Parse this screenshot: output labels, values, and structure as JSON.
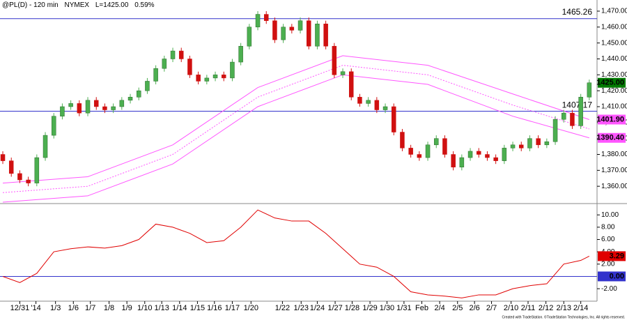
{
  "header": {
    "title": "@PL(D) - 120 min",
    "exchange": "NYMEX",
    "last": "L=1425.00",
    "change": "0.59%"
  },
  "footer": "Created with TradeStation. ©TradeStation Technologies, Inc. All rights reserved.",
  "chart_data": [
    {
      "type": "candlestick",
      "up_color": "#4caf50",
      "down_color": "#d01010",
      "xlim": [
        -0.33,
        69.34
      ],
      "ylim": [
        1350,
        1477
      ],
      "yticks": [
        {
          "value": 1360,
          "label": "1,360.00"
        },
        {
          "value": 1370,
          "label": "1,370.00"
        },
        {
          "value": 1380,
          "label": "1,380.00"
        },
        {
          "value": 1390,
          "label": "1,390.00"
        },
        {
          "value": 1400,
          "label": "1,400.00"
        },
        {
          "value": 1410,
          "label": "1,410.00"
        },
        {
          "value": 1420,
          "label": "1,420.00"
        },
        {
          "value": 1430,
          "label": "1,430.00"
        },
        {
          "value": 1440,
          "label": "1,440.00"
        },
        {
          "value": 1450,
          "label": "1,450.00"
        },
        {
          "value": 1460,
          "label": "1,460.00"
        },
        {
          "value": 1470,
          "label": "1,470.00"
        }
      ],
      "open": [
        1380,
        1376,
        1368,
        1364,
        1362,
        1378,
        1392,
        1404,
        1410,
        1412,
        1406,
        1414,
        1410,
        1408,
        1410,
        1414,
        1416,
        1420,
        1426,
        1434,
        1440,
        1445,
        1440,
        1430,
        1426,
        1428,
        1430,
        1428,
        1438,
        1448,
        1460,
        1468,
        1464,
        1452,
        1460,
        1458,
        1464,
        1448,
        1462,
        1448,
        1430,
        1432,
        1416,
        1412,
        1414,
        1408,
        1410,
        1394,
        1384,
        1380,
        1378,
        1386,
        1390,
        1380,
        1372,
        1378,
        1382,
        1380,
        1378,
        1376,
        1384,
        1386,
        1384,
        1390,
        1386,
        1388,
        1402,
        1406,
        1398,
        1416
      ],
      "high": [
        1382,
        1378,
        1370,
        1366,
        1380,
        1394,
        1406,
        1412,
        1414,
        1414,
        1416,
        1416,
        1412,
        1412,
        1416,
        1418,
        1422,
        1428,
        1436,
        1442,
        1447,
        1447,
        1442,
        1432,
        1430,
        1432,
        1432,
        1440,
        1450,
        1462,
        1470,
        1470,
        1466,
        1462,
        1462,
        1466,
        1466,
        1464,
        1464,
        1450,
        1434,
        1434,
        1418,
        1416,
        1416,
        1412,
        1412,
        1396,
        1386,
        1382,
        1388,
        1392,
        1392,
        1382,
        1380,
        1384,
        1384,
        1382,
        1380,
        1386,
        1388,
        1388,
        1392,
        1392,
        1390,
        1404,
        1408,
        1408,
        1418,
        1427
      ],
      "low": [
        1374,
        1366,
        1362,
        1360,
        1360,
        1376,
        1390,
        1402,
        1408,
        1404,
        1404,
        1408,
        1406,
        1406,
        1408,
        1412,
        1414,
        1418,
        1424,
        1432,
        1438,
        1438,
        1428,
        1424,
        1424,
        1426,
        1426,
        1426,
        1436,
        1446,
        1458,
        1462,
        1450,
        1450,
        1456,
        1456,
        1446,
        1446,
        1446,
        1428,
        1428,
        1414,
        1410,
        1410,
        1406,
        1406,
        1392,
        1382,
        1378,
        1376,
        1376,
        1384,
        1378,
        1370,
        1370,
        1376,
        1378,
        1376,
        1374,
        1374,
        1382,
        1382,
        1382,
        1384,
        1384,
        1386,
        1400,
        1396,
        1396,
        1414
      ],
      "close": [
        1376,
        1368,
        1364,
        1362,
        1378,
        1392,
        1404,
        1410,
        1412,
        1406,
        1414,
        1410,
        1408,
        1410,
        1414,
        1416,
        1420,
        1426,
        1434,
        1440,
        1445,
        1440,
        1430,
        1426,
        1428,
        1430,
        1428,
        1438,
        1448,
        1460,
        1468,
        1464,
        1452,
        1460,
        1458,
        1464,
        1448,
        1462,
        1448,
        1430,
        1432,
        1416,
        1412,
        1414,
        1408,
        1410,
        1394,
        1384,
        1380,
        1378,
        1386,
        1390,
        1380,
        1372,
        1378,
        1382,
        1380,
        1378,
        1376,
        1384,
        1386,
        1384,
        1390,
        1386,
        1388,
        1402,
        1406,
        1398,
        1416,
        1425
      ],
      "last_label": "1425.00",
      "last_color": "#007a00",
      "hlines": [
        {
          "value": 1465.26,
          "color": "#3333cc"
        },
        {
          "value": 1407.17,
          "color": "#3333cc"
        }
      ],
      "bands": {
        "x": [
          0,
          10,
          20,
          30,
          40,
          50,
          60,
          69
        ],
        "series": [
          {
            "color": "#ff55ff",
            "style": "solid",
            "values": [
              1362,
              1366,
              1386,
              1422,
              1442,
              1436,
              1418,
              1401.9
            ],
            "last_label": "1401.90"
          },
          {
            "color": "#ff55ff",
            "style": "dotted",
            "values": [
              1356,
              1360,
              1380,
              1416,
              1436,
              1430,
              1411,
              1396
            ]
          },
          {
            "color": "#ff55ff",
            "style": "solid",
            "values": [
              1350,
              1354,
              1374,
              1410,
              1430,
              1424,
              1404,
              1390.4
            ],
            "last_label": "1390.40"
          }
        ]
      }
    },
    {
      "type": "line",
      "color": "#e00000",
      "xlim": [
        -0.33,
        69.34
      ],
      "ylim": [
        -3.8,
        11.5
      ],
      "yticks": [
        {
          "value": -2,
          "label": "-2.00"
        },
        {
          "value": 2,
          "label": "2.00"
        },
        {
          "value": 4,
          "label": "4.00"
        },
        {
          "value": 6,
          "label": "6.00"
        },
        {
          "value": 8,
          "label": "8.00"
        },
        {
          "value": 10,
          "label": "10.00"
        }
      ],
      "zero_line": {
        "value": 0,
        "label": "0.00",
        "color": "#3333cc"
      },
      "x": [
        0,
        2,
        4,
        6,
        8,
        10,
        12,
        14,
        16,
        18,
        20,
        22,
        24,
        26,
        28,
        30,
        32,
        34,
        36,
        38,
        40,
        42,
        44,
        46,
        48,
        50,
        52,
        54,
        56,
        58,
        60,
        62,
        64,
        66,
        68,
        69
      ],
      "values": [
        0,
        -1,
        0.5,
        4,
        4.5,
        4.8,
        4.6,
        5,
        6,
        8.5,
        8,
        7,
        5.5,
        5.8,
        8,
        10.8,
        9.5,
        9,
        9,
        7,
        4.5,
        2,
        1.5,
        0,
        -2.5,
        -3,
        -3.2,
        -3.5,
        -3,
        -3,
        -2,
        -1.5,
        -1.2,
        2,
        2.6,
        3.29
      ],
      "xticks": [
        {
          "value": 2,
          "label": "12/31"
        },
        {
          "value": 3.9,
          "label": "'14"
        },
        {
          "value": 6.2,
          "label": "1/3"
        },
        {
          "value": 8.3,
          "label": "1/6"
        },
        {
          "value": 10.3,
          "label": "1/7"
        },
        {
          "value": 12.5,
          "label": "1/8"
        },
        {
          "value": 14.6,
          "label": "1/9"
        },
        {
          "value": 16.7,
          "label": "1/10"
        },
        {
          "value": 18.7,
          "label": "1/13"
        },
        {
          "value": 20.8,
          "label": "1/14"
        },
        {
          "value": 22.9,
          "label": "1/15"
        },
        {
          "value": 24.9,
          "label": "1/16"
        },
        {
          "value": 27,
          "label": "1/17"
        },
        {
          "value": 29.2,
          "label": "1/20"
        },
        {
          "value": 32.9,
          "label": "1/22"
        },
        {
          "value": 35.1,
          "label": "1/23"
        },
        {
          "value": 37,
          "label": "1/24"
        },
        {
          "value": 39.1,
          "label": "1/27"
        },
        {
          "value": 41.1,
          "label": "1/28"
        },
        {
          "value": 43.2,
          "label": "1/29"
        },
        {
          "value": 45.2,
          "label": "1/30"
        },
        {
          "value": 47.2,
          "label": "1/31"
        },
        {
          "value": 49.3,
          "label": "Feb"
        },
        {
          "value": 51.4,
          "label": "2/4"
        },
        {
          "value": 53.5,
          "label": "2/5"
        },
        {
          "value": 55.5,
          "label": "2/6"
        },
        {
          "value": 57.5,
          "label": "2/7"
        },
        {
          "value": 59.8,
          "label": "2/10"
        },
        {
          "value": 61.8,
          "label": "2/11"
        },
        {
          "value": 63.9,
          "label": "2/12"
        },
        {
          "value": 66,
          "label": "2/13"
        },
        {
          "value": 68,
          "label": "2/14"
        }
      ]
    }
  ]
}
